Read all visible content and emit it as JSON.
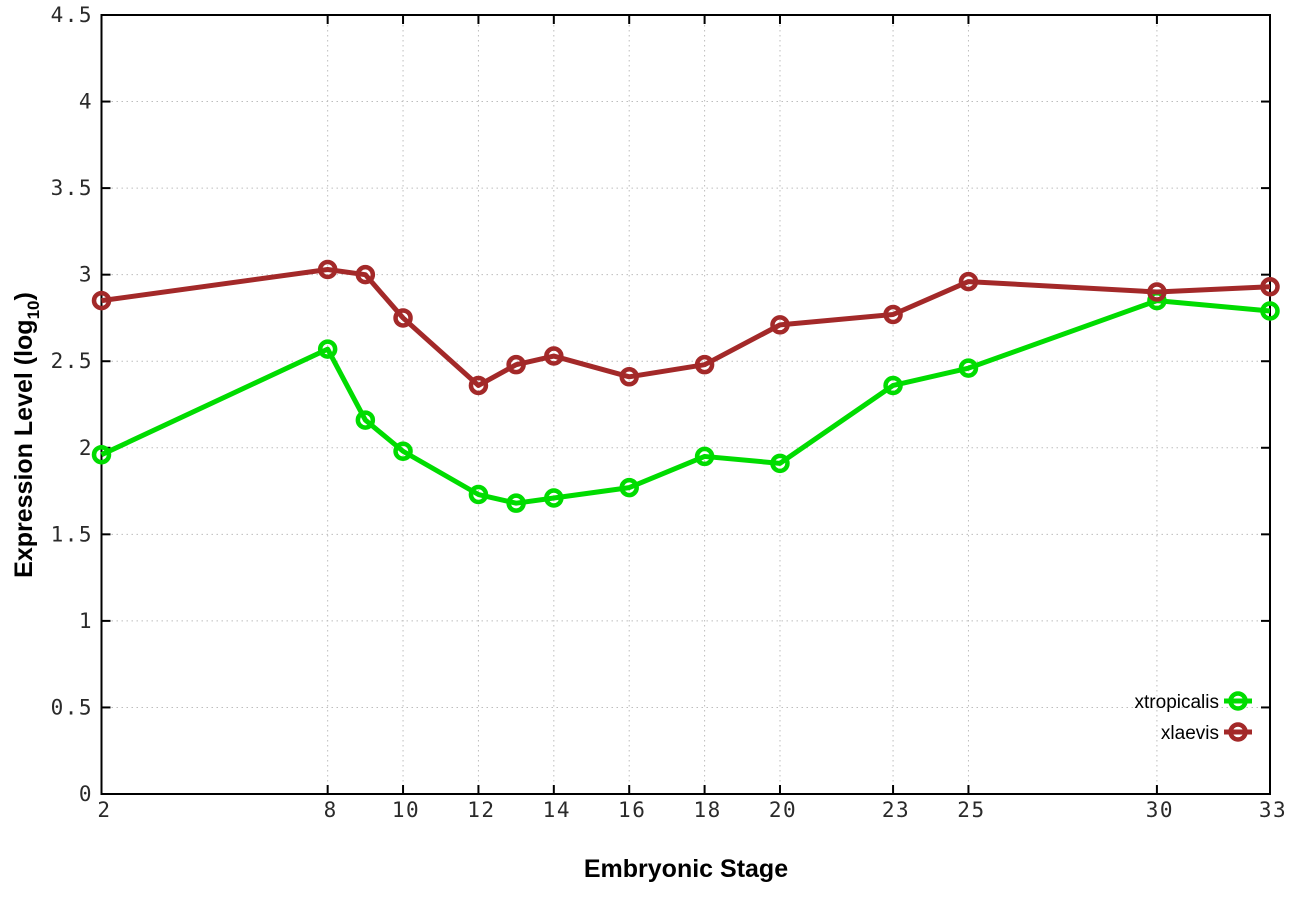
{
  "figure": {
    "background": "#ffffff",
    "border_color": "#000000",
    "grid_color": "#bdbdbd",
    "tick_label_color": "#2a2a2a",
    "y_axis_title": {
      "prefix": "Expression Level (log",
      "subscript": "10",
      "suffix": ")"
    },
    "x_axis_title": "Embryonic Stage"
  },
  "chart_data": {
    "type": "line",
    "title": "",
    "xlabel": "Embryonic Stage",
    "ylabel": "Expression Level (log10)",
    "xlim": [
      2,
      33
    ],
    "ylim": [
      0,
      4.5
    ],
    "grid": true,
    "marker": "open-circle",
    "legend_position": "bottom-right",
    "x": [
      2,
      8,
      9,
      10,
      12,
      13,
      14,
      16,
      18,
      20,
      23,
      25,
      30,
      33
    ],
    "series": [
      {
        "name": "xtropicalis",
        "color": "#00dc00",
        "values": [
          1.96,
          2.57,
          2.16,
          1.98,
          1.73,
          1.68,
          1.71,
          1.77,
          1.95,
          1.91,
          2.36,
          2.46,
          2.85,
          2.79
        ]
      },
      {
        "name": "xlaevis",
        "color": "#a32929",
        "values": [
          2.85,
          3.03,
          3.0,
          2.75,
          2.36,
          2.48,
          2.53,
          2.41,
          2.48,
          2.71,
          2.77,
          2.96,
          2.9,
          2.93
        ]
      }
    ],
    "x_ticks": [
      {
        "v": 2,
        "label": "2"
      },
      {
        "v": 8,
        "label": "8"
      },
      {
        "v": 10,
        "label": "10"
      },
      {
        "v": 12,
        "label": "12"
      },
      {
        "v": 14,
        "label": "14"
      },
      {
        "v": 16,
        "label": "16"
      },
      {
        "v": 18,
        "label": "18"
      },
      {
        "v": 20,
        "label": "20"
      },
      {
        "v": 23,
        "label": "23"
      },
      {
        "v": 25,
        "label": "25"
      },
      {
        "v": 30,
        "label": "30"
      },
      {
        "v": 33,
        "label": "33"
      }
    ],
    "y_ticks": [
      {
        "v": 0,
        "label": "0"
      },
      {
        "v": 0.5,
        "label": "0.5"
      },
      {
        "v": 1,
        "label": "1"
      },
      {
        "v": 1.5,
        "label": "1.5"
      },
      {
        "v": 2,
        "label": "2"
      },
      {
        "v": 2.5,
        "label": "2.5"
      },
      {
        "v": 3,
        "label": "3"
      },
      {
        "v": 3.5,
        "label": "3.5"
      },
      {
        "v": 4,
        "label": "4"
      },
      {
        "v": 4.5,
        "label": "4.5"
      }
    ]
  }
}
